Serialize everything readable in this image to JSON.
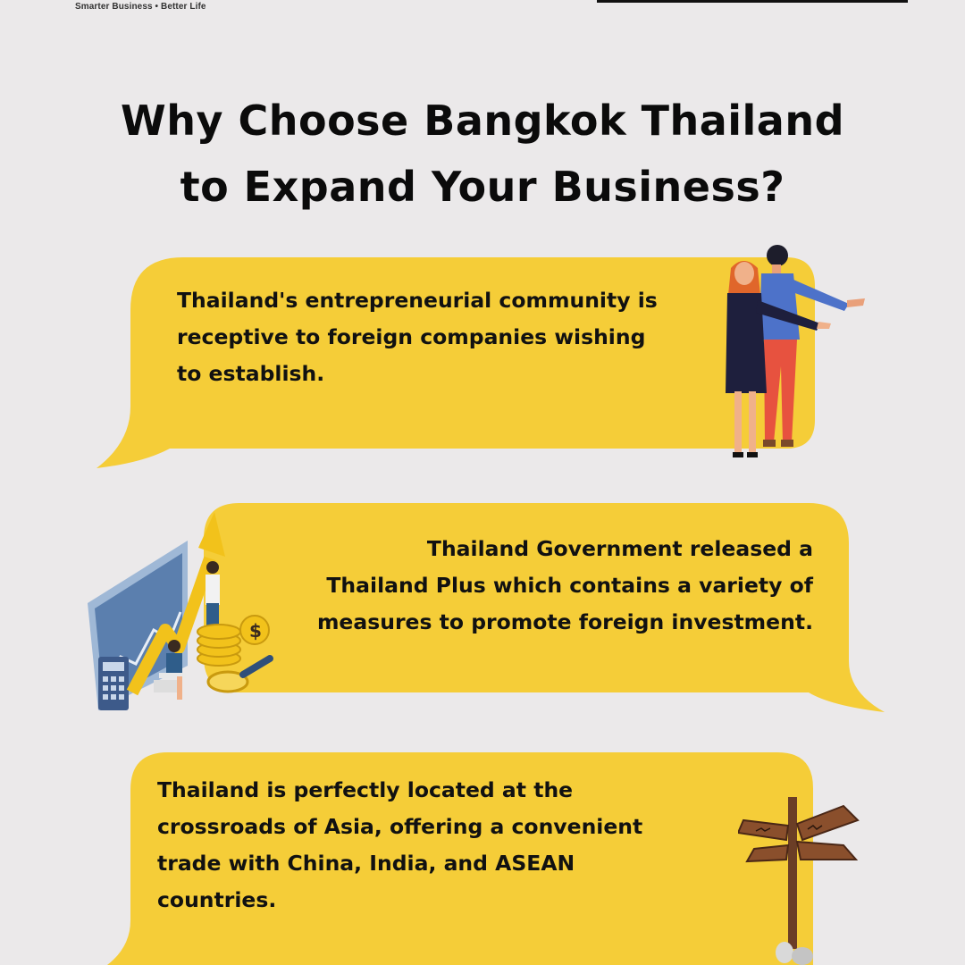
{
  "brand": {
    "tagline": "Smarter Business • Better Life"
  },
  "title": {
    "line1": "Why Choose Bangkok Thailand",
    "line2": "to Expand Your Business?"
  },
  "cards": [
    {
      "lines": [
        "Thailand's entrepreneurial community is",
        "receptive to foreign companies wishing",
        "to establish."
      ],
      "illustration": "couple-pointing-illustration"
    },
    {
      "lines": [
        "Thailand Government released a",
        "Thailand Plus which contains a variety of",
        "measures to promote foreign investment."
      ],
      "illustration": "investment-growth-illustration"
    },
    {
      "lines": [
        "Thailand is perfectly located at the",
        "crossroads of Asia, offering a convenient",
        "trade with China, India, and ASEAN",
        "countries."
      ],
      "illustration": "signpost-illustration"
    }
  ],
  "colors": {
    "background": "#ebe9ea",
    "bubble": "#f5cd38",
    "text": "#111111"
  }
}
